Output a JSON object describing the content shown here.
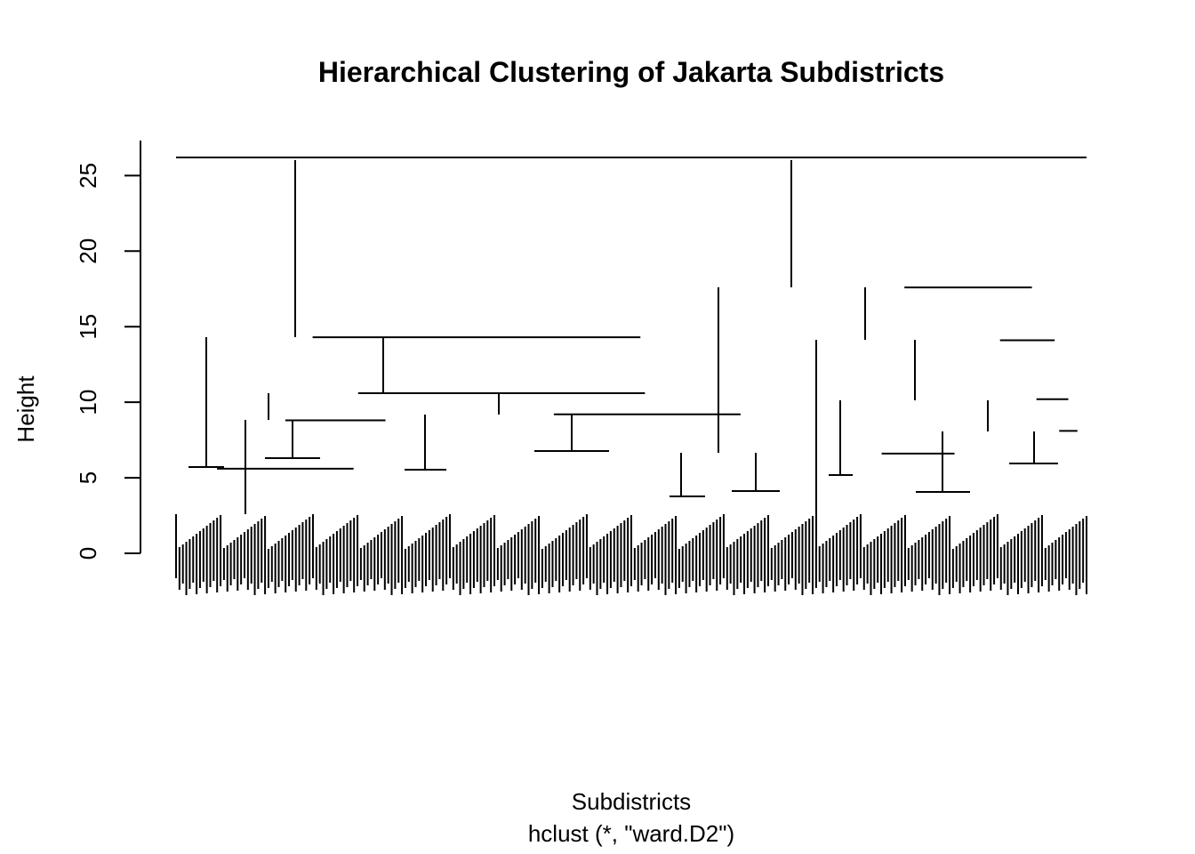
{
  "chart_data": {
    "type": "dendrogram",
    "title": "Hierarchical Clustering of Jakarta Subdistricts",
    "xlabel": "Subdistricts",
    "subtitle": "hclust (*, \"ward.D2\")",
    "ylabel": "Height",
    "ylim": [
      0,
      27
    ],
    "y_ticks": [
      0,
      5,
      10,
      15,
      20,
      25
    ],
    "grid": false,
    "merges": [
      {
        "left": [
          0.0,
          0.0
        ],
        "right": [
          1.0,
          1.0
        ],
        "height": 26.2
      },
      {
        "left": [
          0.0,
          0.3
        ],
        "right": [
          0.3,
          0.72
        ],
        "height": 14.3
      },
      {
        "left": [
          0.72,
          0.88
        ],
        "right": [
          0.88,
          1.0
        ],
        "height": 17.6
      },
      {
        "left": [
          0.0,
          0.09
        ],
        "right": [
          0.09,
          0.3
        ],
        "height": 5.6
      },
      {
        "left": [
          0.09,
          0.31
        ],
        "right": [
          0.31,
          0.72
        ],
        "height": 10.6
      },
      {
        "left": [
          0.09,
          0.15
        ],
        "right": [
          0.15,
          0.31
        ],
        "height": 8.8
      },
      {
        "left": [
          0.31,
          0.52
        ],
        "right": [
          0.52,
          0.72
        ],
        "height": 9.2
      },
      {
        "left": [
          0.72,
          0.83
        ],
        "right": [
          0.83,
          0.88
        ],
        "height": 6.6
      },
      {
        "left": [
          0.88,
          0.93
        ],
        "right": [
          0.93,
          1.0
        ],
        "height": 14.1
      },
      {
        "left": [
          0.93,
          0.96
        ],
        "right": [
          0.96,
          1.0
        ],
        "height": 10.2
      },
      {
        "left": [
          0.96,
          0.98
        ],
        "right": [
          0.98,
          1.0
        ],
        "height": 8.1
      }
    ],
    "leaf_count": 267,
    "note_scope": "visible"
  }
}
